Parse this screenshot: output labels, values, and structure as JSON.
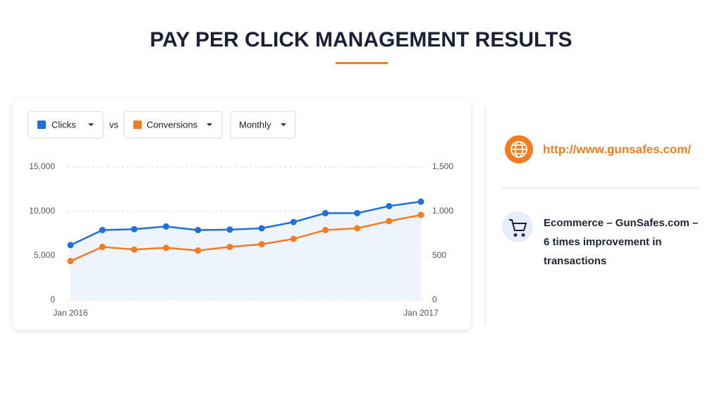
{
  "header": {
    "title": "PAY PER CLICK MANAGEMENT RESULTS"
  },
  "controls": {
    "vs": "vs",
    "period": "Monthly"
  },
  "chart_data": {
    "type": "line",
    "x": [
      "Jan 2016",
      null,
      null,
      null,
      null,
      null,
      null,
      null,
      null,
      null,
      null,
      "Jan 2017"
    ],
    "series": [
      {
        "name": "Clicks",
        "color": "#1f6fdc",
        "values": [
          6200,
          7900,
          8000,
          8300,
          7900,
          7950,
          8100,
          8800,
          9800,
          9800,
          10600,
          11100
        ]
      },
      {
        "name": "Conversions",
        "color": "#f47c20",
        "axis": "y2",
        "values": [
          440,
          600,
          570,
          590,
          560,
          600,
          630,
          690,
          790,
          810,
          890,
          960
        ]
      }
    ],
    "ylim": [
      0,
      15000
    ],
    "yticks": [
      0,
      {
        "value": 5000,
        "label": "5,000"
      },
      {
        "value": 10000,
        "label": "10,000"
      },
      {
        "value": 15000,
        "label": "15,000"
      }
    ],
    "y2lim": [
      0,
      1500
    ],
    "y2ticks": [
      0,
      500,
      {
        "value": 1000,
        "label": "1,000"
      },
      {
        "value": 1500,
        "label": "1,500"
      }
    ],
    "grid": true
  },
  "side_panel": {
    "url": "http://www.gunsafes.com/",
    "description": [
      "Ecommerce – GunSafes.com –",
      "6 times improvement in",
      "transactions"
    ]
  }
}
